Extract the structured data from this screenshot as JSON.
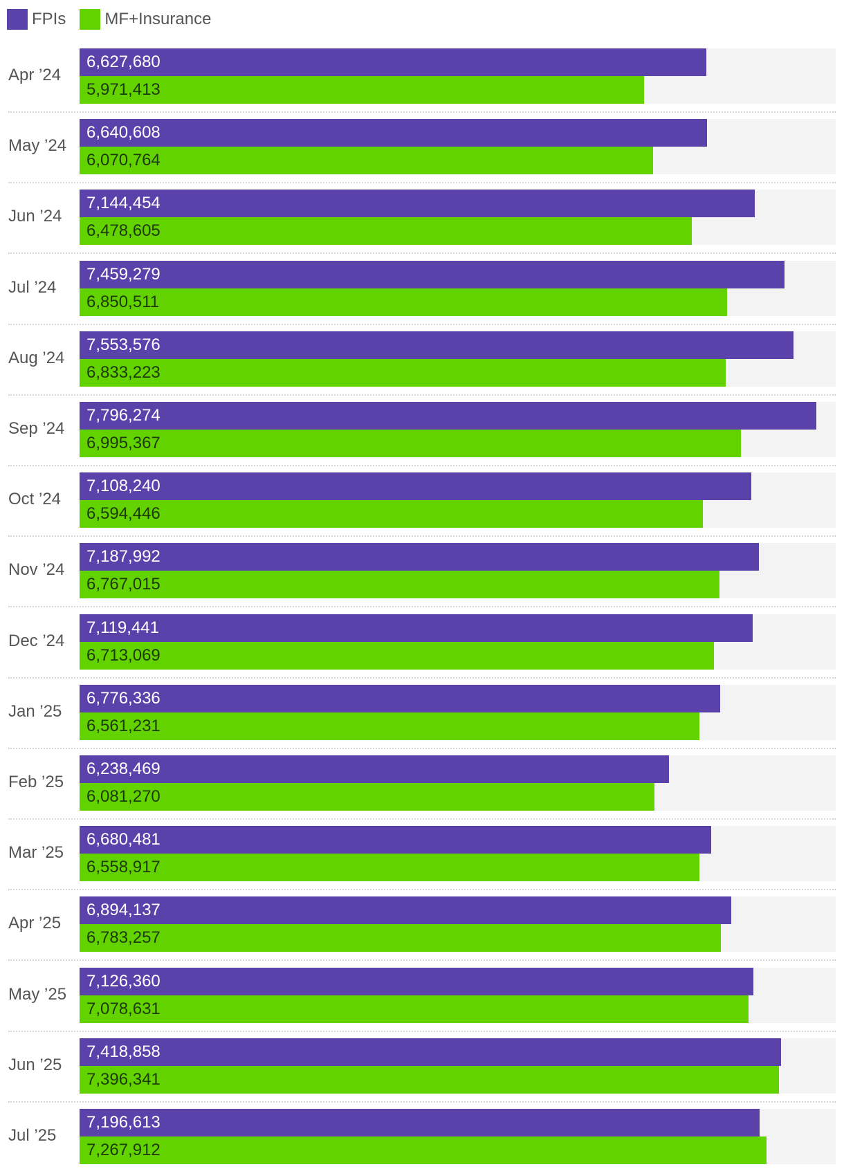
{
  "chart_data": {
    "type": "bar",
    "orientation": "horizontal",
    "categories": [
      "Apr ’24",
      "May ’24",
      "Jun ’24",
      "Jul ’24",
      "Aug ’24",
      "Sep ’24",
      "Oct ’24",
      "Nov ’24",
      "Dec ’24",
      "Jan ’25",
      "Feb ’25",
      "Mar ’25",
      "Apr ’25",
      "May ’25",
      "Jun ’25",
      "Jul ’25"
    ],
    "series": [
      {
        "name": "FPIs",
        "color": "#5b42ab",
        "label_color": "#ffffff",
        "values": [
          6627680,
          6640608,
          7144454,
          7459279,
          7553576,
          7796274,
          7108240,
          7187992,
          7119441,
          6776336,
          6238469,
          6680481,
          6894137,
          7126360,
          7418858,
          7196613
        ],
        "labels": [
          "6,627,680",
          "6,640,608",
          "7,144,454",
          "7,459,279",
          "7,553,576",
          "7,796,274",
          "7,108,240",
          "7,187,992",
          "7,119,441",
          "6,776,336",
          "6,238,469",
          "6,680,481",
          "6,894,137",
          "7,126,360",
          "7,418,858",
          "7,196,613"
        ]
      },
      {
        "name": "MF+Insurance",
        "color": "#63d300",
        "label_color": "#1e3a0a",
        "values": [
          5971413,
          6070764,
          6478605,
          6850511,
          6833223,
          6995367,
          6594446,
          6767015,
          6713069,
          6561231,
          6081270,
          6558917,
          6783257,
          7078631,
          7396341,
          7267912
        ],
        "labels": [
          "5,971,413",
          "6,070,764",
          "6,478,605",
          "6,850,511",
          "6,833,223",
          "6,995,367",
          "6,594,446",
          "6,767,015",
          "6,713,069",
          "6,561,231",
          "6,081,270",
          "6,558,917",
          "6,783,257",
          "7,078,631",
          "7,396,341",
          "7,267,912"
        ]
      }
    ],
    "xlim": [
      0,
      8000000
    ],
    "legend": "top-left",
    "background_track_color": "#f3f3f3"
  }
}
